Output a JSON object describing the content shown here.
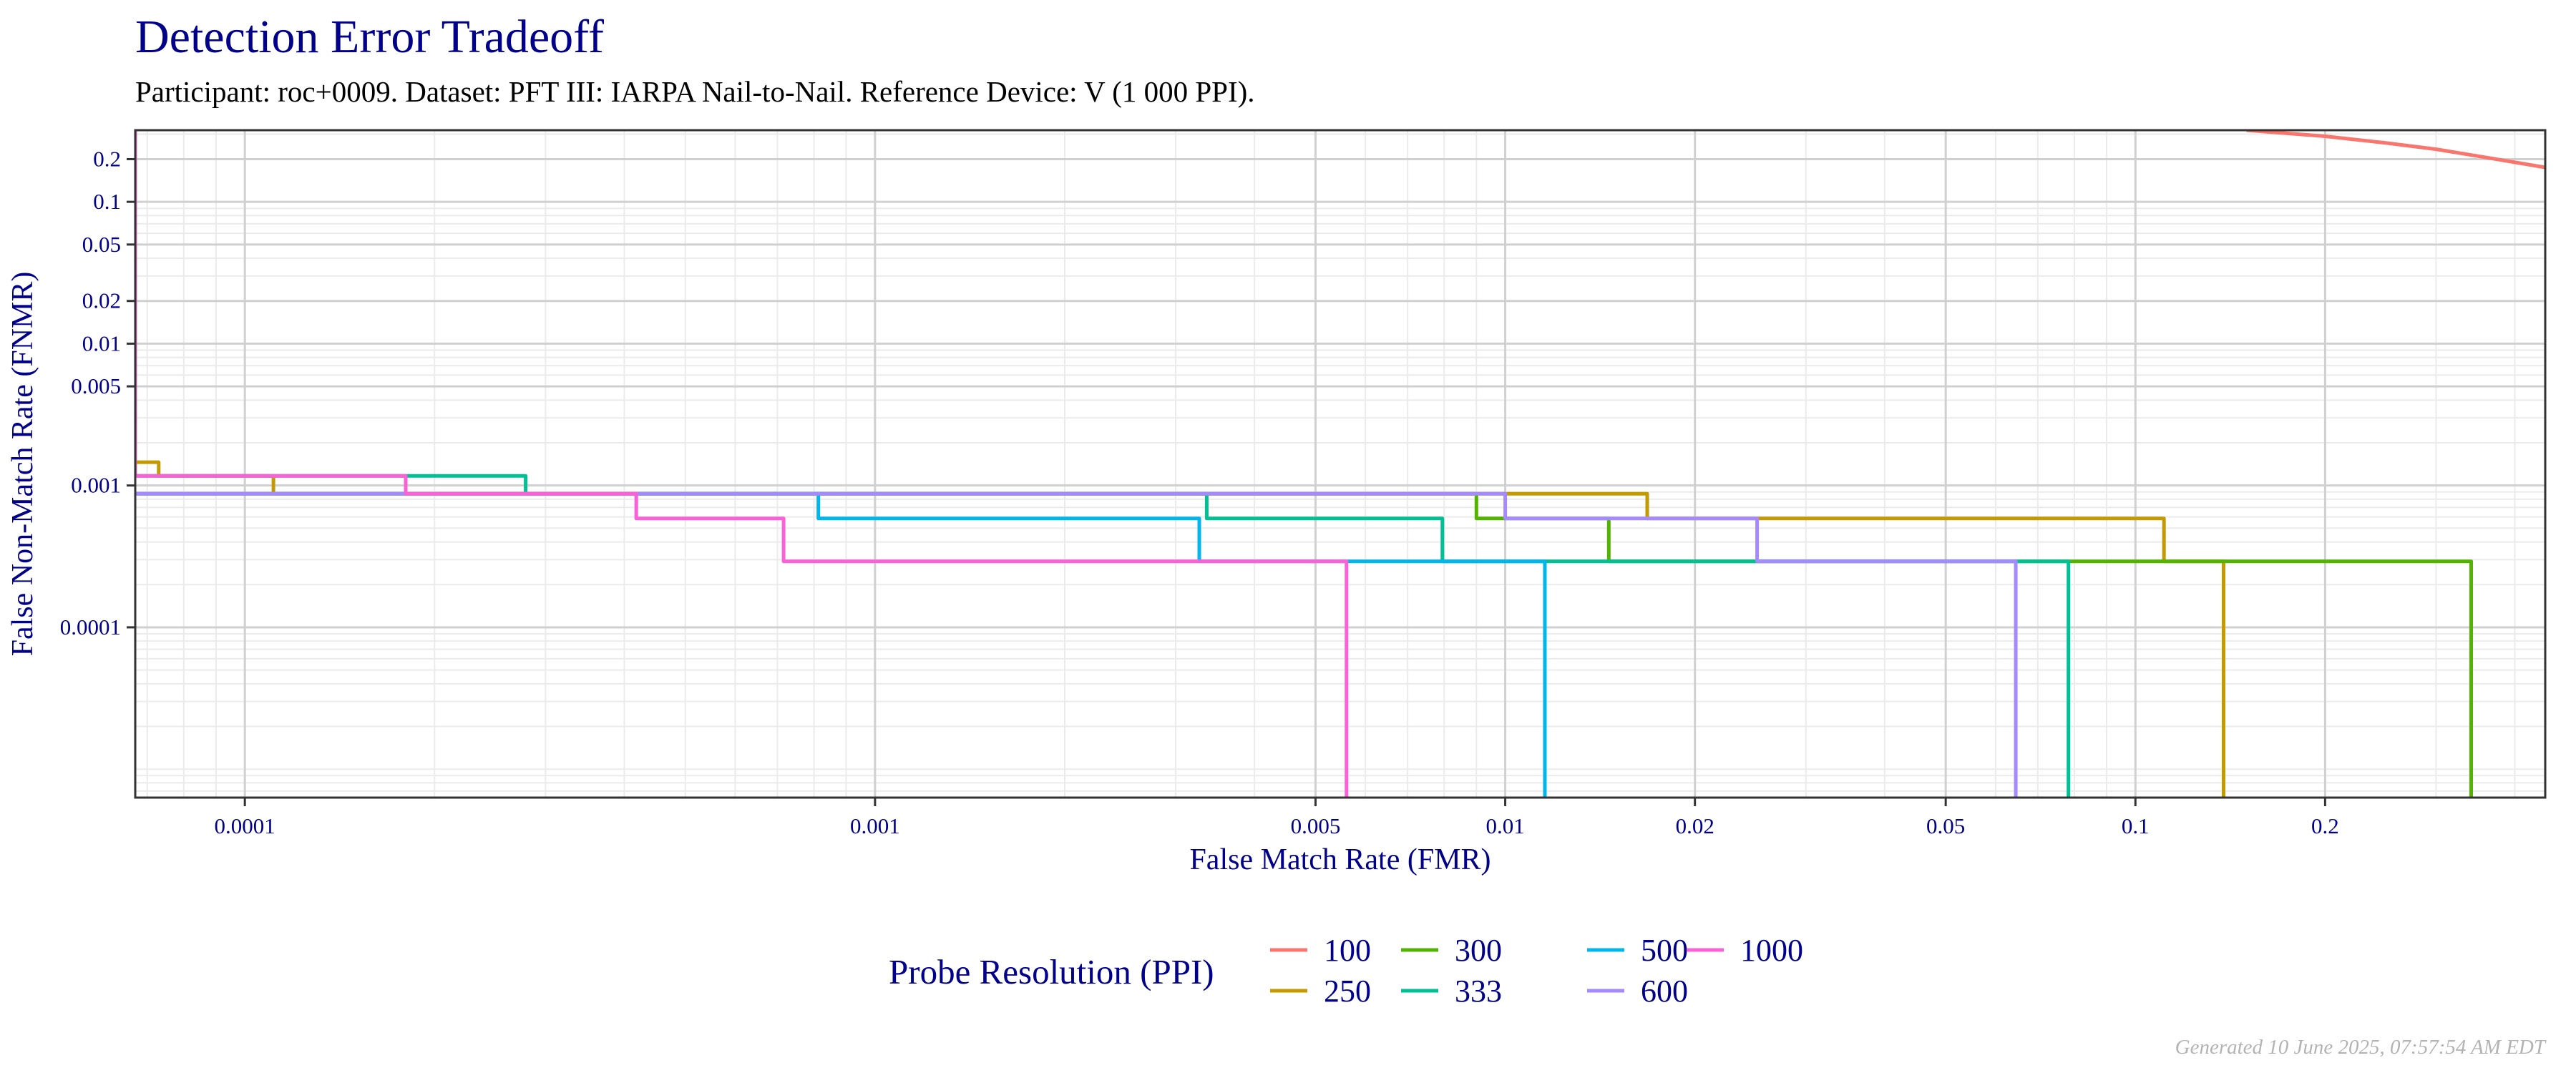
{
  "chart_data": {
    "type": "line",
    "title": "Detection Error Tradeoff",
    "subtitle": "Participant: roc+0009. Dataset: PFT III: IARPA Nail-to-Nail. Reference Device: V (1 000 PPI).",
    "xlabel": "False Match Rate (FMR)",
    "ylabel": "False Non-Match Rate (FNMR)",
    "xscale": "log",
    "yscale": "log",
    "xlim": [
      6.7e-05,
      0.447
    ],
    "ylim": [
      6.3e-06,
      0.32
    ],
    "xticks": [
      {
        "v": 0.0001,
        "label": "0.0001"
      },
      {
        "v": 0.001,
        "label": "0.001"
      },
      {
        "v": 0.005,
        "label": "0.005"
      },
      {
        "v": 0.01,
        "label": "0.01"
      },
      {
        "v": 0.02,
        "label": "0.02"
      },
      {
        "v": 0.05,
        "label": "0.05"
      },
      {
        "v": 0.1,
        "label": "0.1"
      },
      {
        "v": 0.2,
        "label": "0.2"
      }
    ],
    "yticks": [
      {
        "v": 0.2,
        "label": "0.2"
      },
      {
        "v": 0.1,
        "label": "0.1"
      },
      {
        "v": 0.05,
        "label": "0.05"
      },
      {
        "v": 0.02,
        "label": "0.02"
      },
      {
        "v": 0.01,
        "label": "0.01"
      },
      {
        "v": 0.005,
        "label": "0.005"
      },
      {
        "v": 0.001,
        "label": "0.001"
      },
      {
        "v": 0.0001,
        "label": "0.0001"
      }
    ],
    "grid": true,
    "legend": {
      "title": "Probe Resolution (PPI)",
      "placement": "bottom"
    },
    "series": [
      {
        "name": "100",
        "color": "#F8766D",
        "step": false,
        "points": [
          [
            0.15,
            0.32
          ],
          [
            0.2,
            0.29
          ],
          [
            0.25,
            0.26
          ],
          [
            0.3,
            0.235
          ],
          [
            0.35,
            0.21
          ],
          [
            0.4,
            0.19
          ],
          [
            0.447,
            0.175
          ]
        ]
      },
      {
        "name": "250",
        "color": "#C49A00",
        "step": true,
        "points": [
          [
            6.7e-05,
            0.00146
          ],
          [
            7.3e-05,
            0.00146
          ],
          [
            7.3e-05,
            0.00117
          ],
          [
            0.000111,
            0.00117
          ],
          [
            0.000111,
            0.000875
          ],
          [
            0.0168,
            0.000875
          ],
          [
            0.0168,
            0.000585
          ],
          [
            0.111,
            0.000585
          ],
          [
            0.111,
            0.000292
          ],
          [
            0.138,
            0.000292
          ],
          [
            0.138,
            6.3e-06
          ]
        ]
      },
      {
        "name": "300",
        "color": "#53B400",
        "step": true,
        "points": [
          [
            6.7e-05,
            0.000875
          ],
          [
            0.009,
            0.000875
          ],
          [
            0.009,
            0.000585
          ],
          [
            0.0146,
            0.000585
          ],
          [
            0.0146,
            0.000292
          ],
          [
            0.341,
            0.000292
          ],
          [
            0.341,
            6.3e-06
          ]
        ]
      },
      {
        "name": "333",
        "color": "#00C094",
        "step": true,
        "points": [
          [
            6.7e-05,
            0.00117
          ],
          [
            0.000279,
            0.00117
          ],
          [
            0.000279,
            0.000875
          ],
          [
            0.00336,
            0.000875
          ],
          [
            0.00336,
            0.000585
          ],
          [
            0.00795,
            0.000585
          ],
          [
            0.00795,
            0.000292
          ],
          [
            0.0783,
            0.000292
          ],
          [
            0.0783,
            6.3e-06
          ]
        ]
      },
      {
        "name": "500",
        "color": "#00B6EB",
        "step": true,
        "points": [
          [
            6.7e-05,
            0.000875
          ],
          [
            0.000813,
            0.000875
          ],
          [
            0.000813,
            0.000585
          ],
          [
            0.00327,
            0.000585
          ],
          [
            0.00327,
            0.000292
          ],
          [
            0.01156,
            0.000292
          ],
          [
            0.01156,
            6.3e-06
          ]
        ]
      },
      {
        "name": "600",
        "color": "#A58AFF",
        "step": true,
        "points": [
          [
            6.7e-05,
            0.000875
          ],
          [
            0.01,
            0.000875
          ],
          [
            0.01,
            0.000585
          ],
          [
            0.0251,
            0.000585
          ],
          [
            0.0251,
            0.000292
          ],
          [
            0.0646,
            0.000292
          ],
          [
            0.0646,
            6.3e-06
          ]
        ]
      },
      {
        "name": "1000",
        "color": "#FB61D7",
        "step": true,
        "points": [
          [
            6.7e-05,
            0.32
          ],
          [
            6.7e-05,
            0.00117
          ],
          [
            0.00018,
            0.00117
          ],
          [
            0.00018,
            0.000875
          ],
          [
            0.000418,
            0.000875
          ],
          [
            0.000418,
            0.000585
          ],
          [
            0.000716,
            0.000585
          ],
          [
            0.000716,
            0.000292
          ],
          [
            0.0056,
            0.000292
          ],
          [
            0.0056,
            6.3e-06
          ]
        ]
      }
    ]
  },
  "footer": "Generated 10 June 2025, 07:57:54 AM EDT"
}
